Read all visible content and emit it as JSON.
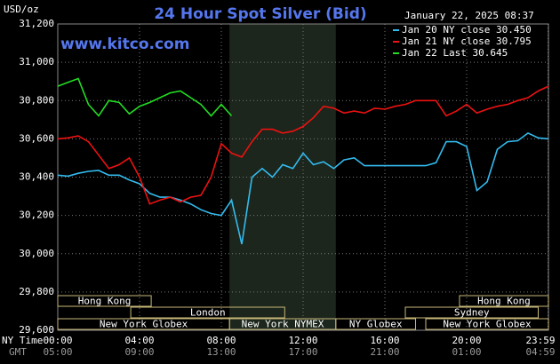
{
  "chart_data": {
    "type": "line",
    "title": "24 Hour Spot Silver (Bid)",
    "timestamp": "January 22, 2025 08:37",
    "watermark": "www.kitco.com",
    "y_label": "USD/oz",
    "x_row_labels": [
      "NY Time",
      "GMT"
    ],
    "x": [
      0,
      0.5,
      1,
      1.5,
      2,
      2.5,
      3,
      3.5,
      4,
      4.5,
      5,
      5.5,
      6,
      6.5,
      7,
      7.5,
      8,
      8.5,
      9,
      9.5,
      10,
      10.5,
      11,
      11.5,
      12,
      12.5,
      13,
      13.5,
      14,
      14.5,
      15,
      15.5,
      16,
      16.5,
      17,
      17.5,
      18,
      18.5,
      19,
      19.5,
      20,
      20.5,
      21,
      21.5,
      22,
      22.5,
      23,
      23.5,
      24
    ],
    "xlim": [
      0,
      24
    ],
    "xticks": [
      {
        "value": 0,
        "label": "00:00"
      },
      {
        "value": 4,
        "label": "04:00"
      },
      {
        "value": 8,
        "label": "08:00"
      },
      {
        "value": 12,
        "label": "12:00"
      },
      {
        "value": 16,
        "label": "16:00"
      },
      {
        "value": 20,
        "label": "20:00"
      },
      {
        "value": 23.98,
        "label": "23:59"
      }
    ],
    "gmt_labels": [
      "05:00",
      "09:00",
      "13:00",
      "17:00",
      "21:00",
      "01:00",
      "04:59"
    ],
    "ylim": [
      29600,
      31200
    ],
    "yticks": [
      {
        "value": 29600,
        "label": "29,600"
      },
      {
        "value": 29800,
        "label": "29,800"
      },
      {
        "value": 30000,
        "label": "30,000"
      },
      {
        "value": 30200,
        "label": "30,200"
      },
      {
        "value": 30400,
        "label": "30,400"
      },
      {
        "value": 30600,
        "label": "30,600"
      },
      {
        "value": 30800,
        "label": "30,800"
      },
      {
        "value": 31000,
        "label": "31,000"
      },
      {
        "value": 31200,
        "label": "31,200"
      }
    ],
    "grid": true,
    "highlight": [
      8.4,
      13.6
    ],
    "sessions": [
      {
        "label": "Hong Kong",
        "start": 0,
        "end": 4.57,
        "row": 0
      },
      {
        "label": "Hong Kong",
        "start": 19.65,
        "end": 24,
        "row": 0
      },
      {
        "label": "London",
        "start": 3.57,
        "end": 11.1,
        "row": 1
      },
      {
        "label": "Sydney",
        "start": 17.0,
        "end": 23.5,
        "row": 1
      },
      {
        "label": "New York Globex",
        "start": 0,
        "end": 8.4,
        "row": 2
      },
      {
        "label": "New York NYMEX",
        "start": 8.4,
        "end": 13.6,
        "row": 2
      },
      {
        "label": "NY Globex",
        "start": 13.6,
        "end": 17.5,
        "row": 2
      },
      {
        "label": "New York Globex",
        "start": 18.0,
        "end": 24,
        "row": 2
      }
    ],
    "series": [
      {
        "name": "Jan 20 NY close 30.450",
        "color": "#33bbee",
        "values": [
          30410,
          30405,
          30420,
          30430,
          30435,
          30410,
          30410,
          30385,
          30365,
          30315,
          30295,
          30295,
          30280,
          30260,
          30230,
          30210,
          30200,
          30280,
          30050,
          30400,
          30445,
          30400,
          30465,
          30445,
          30525,
          30465,
          30480,
          30445,
          30490,
          30500,
          30460,
          30460,
          30460,
          30460,
          30460,
          30460,
          30460,
          30475,
          30585,
          30585,
          30560,
          30330,
          30375,
          30545,
          30585,
          30590,
          30630,
          30605,
          30600
        ]
      },
      {
        "name": "Jan 21 NY close 30.795",
        "color": "#ee1111",
        "values": [
          30600,
          30605,
          30615,
          30585,
          30515,
          30445,
          30465,
          30500,
          30400,
          30260,
          30280,
          30295,
          30270,
          30295,
          30305,
          30400,
          30575,
          30525,
          30505,
          30585,
          30650,
          30650,
          30630,
          30640,
          30665,
          30710,
          30770,
          30760,
          30735,
          30745,
          30735,
          30760,
          30755,
          30770,
          30780,
          30800,
          30800,
          30800,
          30720,
          30745,
          30780,
          30735,
          30755,
          30770,
          30780,
          30800,
          30815,
          30850,
          30875
        ]
      },
      {
        "name": "Jan 22 Last 30.645",
        "color": "#22dd22",
        "values": [
          30875,
          30895,
          30915,
          30780,
          30720,
          30800,
          30790,
          30730,
          30770,
          30790,
          30815,
          30840,
          30850,
          30815,
          30780,
          30720,
          30780,
          30720,
          null,
          null,
          null,
          null,
          null,
          null,
          null,
          null,
          null,
          null,
          null,
          null,
          null,
          null,
          null,
          null,
          null,
          null,
          null,
          null,
          null,
          null,
          null,
          null,
          null,
          null,
          null,
          null,
          null,
          null,
          null
        ]
      }
    ]
  }
}
